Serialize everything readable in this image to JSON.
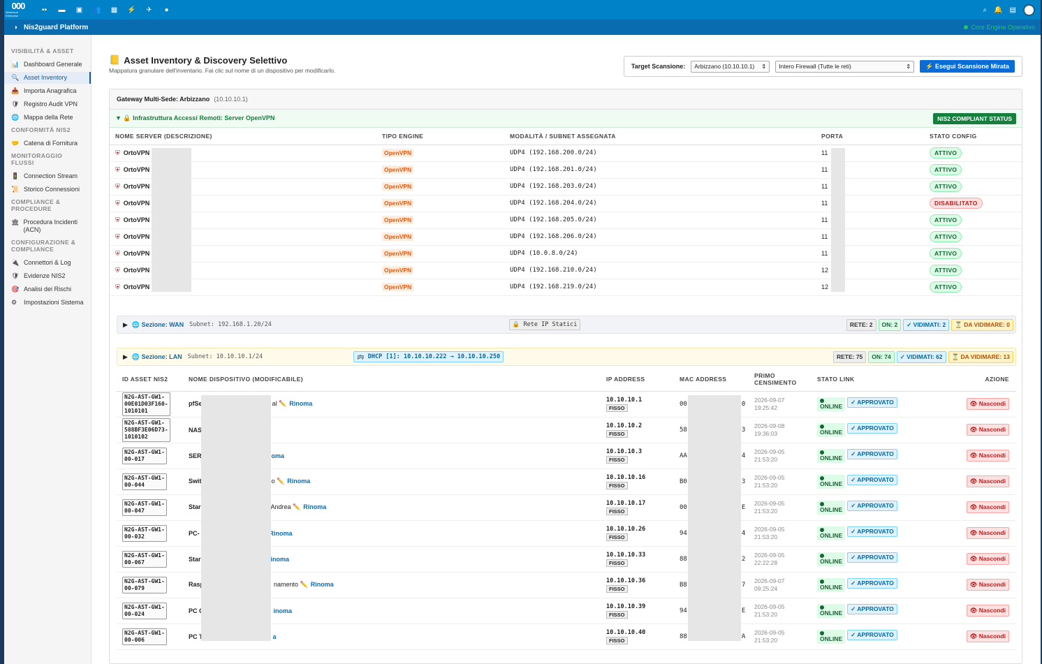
{
  "topbar": {
    "brand": "000",
    "brand_sub": "Nextcloud Enterprise",
    "apps": [
      "dashboard-icon",
      "files-icon",
      "photos-icon",
      "contacts-icon",
      "calendar-icon",
      "activity-icon",
      "talk-icon",
      "nis2-icon"
    ]
  },
  "appbar": {
    "title": "Nis2guard Platform",
    "engine": "Core Engine Operativo"
  },
  "sidebar": [
    {
      "type": "sec",
      "label": "VISIBILITÀ & ASSET"
    },
    {
      "type": "item",
      "label": "Dashboard Generale",
      "icon": "📊"
    },
    {
      "type": "item",
      "label": "Asset Inventory",
      "icon": "🔍",
      "active": true
    },
    {
      "type": "item",
      "label": "Importa Anagrafica",
      "icon": "📥"
    },
    {
      "type": "item",
      "label": "Registro Audit VPN",
      "icon": "🛡"
    },
    {
      "type": "item",
      "label": "Mappa della Rete",
      "icon": "🌐"
    },
    {
      "type": "sec",
      "label": "CONFORMITÀ NIS2"
    },
    {
      "type": "item",
      "label": "Catena di Fornitura",
      "icon": "🤝"
    },
    {
      "type": "sec",
      "label": "MONITORAGGIO FLUSSI"
    },
    {
      "type": "item",
      "label": "Connection Stream",
      "icon": "🚦"
    },
    {
      "type": "item",
      "label": "Storico Connessioni",
      "icon": "📜"
    },
    {
      "type": "sec",
      "label": "COMPLIANCE & PROCEDURE"
    },
    {
      "type": "item",
      "label": "Procedura Incidenti (ACN)",
      "icon": "🏛"
    },
    {
      "type": "sec",
      "label": "CONFIGURAZIONE & COMPLIANCE"
    },
    {
      "type": "item",
      "label": "Connettori & Log",
      "icon": "🔌"
    },
    {
      "type": "item",
      "label": "Evidenze NIS2",
      "icon": "🛡"
    },
    {
      "type": "item",
      "label": "Analisi dei Rischi",
      "icon": "🎯"
    },
    {
      "type": "item",
      "label": "Impostazioni Sistema",
      "icon": "⚙"
    }
  ],
  "page": {
    "title": "Asset Inventory & Discovery Selettivo",
    "subtitle": "Mappatura granulare dell'inventario. Fai clic sul nome di un dispositivo per modificarlo.",
    "target_label": "Target Scansione:",
    "target_value": "Arbizzano (10.10.10.1)",
    "scope_value": "Intero Firewall (Tutte le reti)",
    "scan_button": "⚡ Esegui Scansione Mirata"
  },
  "gateway": {
    "label": "Gateway Multi-Sede: Arbizzano",
    "ip": "(10.10.10.1)"
  },
  "vpn": {
    "title": "▼ 🔒 Infrastruttura Accessi Remoti: Server OpenVPN",
    "badge": "NIS2 COMPLIANT STATUS",
    "headers": [
      "NOME SERVER (DESCRIZIONE)",
      "TIPO ENGINE",
      "MODALITÀ / SUBNET ASSEGNATA",
      "PORTA",
      "STATO CONFIG"
    ],
    "rows": [
      {
        "name": "OrtoVPN",
        "engine": "OpenVPN",
        "subnet": "UDP4 (192.168.200.0/24)",
        "port": "11",
        "status": "ATTIVO"
      },
      {
        "name": "OrtoVPN",
        "engine": "OpenVPN",
        "subnet": "UDP4 (192.168.201.0/24)",
        "port": "11",
        "status": "ATTIVO"
      },
      {
        "name": "OrtoVPN",
        "engine": "OpenVPN",
        "subnet": "UDP4 (192.168.203.0/24)",
        "port": "11",
        "status": "ATTIVO"
      },
      {
        "name": "OrtoVPN",
        "engine": "OpenVPN",
        "subnet": "UDP4 (192.168.204.0/24)",
        "port": "11",
        "status": "DISABILITATO"
      },
      {
        "name": "OrtoVPN",
        "engine": "OpenVPN",
        "subnet": "UDP4 (192.168.205.0/24)",
        "port": "11",
        "status": "ATTIVO"
      },
      {
        "name": "OrtoVPN",
        "engine": "OpenVPN",
        "subnet": "UDP4 (192.168.206.0/24)",
        "port": "11",
        "status": "ATTIVO"
      },
      {
        "name": "OrtoVPN",
        "engine": "OpenVPN",
        "subnet": "UDP4 (10.0.8.0/24)",
        "port": "11",
        "status": "ATTIVO"
      },
      {
        "name": "OrtoVPN",
        "engine": "OpenVPN",
        "subnet": "UDP4 (192.168.210.0/24)",
        "port": "12",
        "status": "ATTIVO"
      },
      {
        "name": "OrtoVPN",
        "engine": "OpenVPN",
        "subnet": "UDP4 (192.168.219.0/24)",
        "port": "12",
        "status": "ATTIVO"
      }
    ]
  },
  "wan": {
    "arrow": "▶",
    "name": "🌐 Sezione: WAN",
    "subnet": "Subnet: 192.168.1.20/24",
    "static": "🔒 Rete IP Statici",
    "rete": "RETE: 2",
    "on": "ON: 2",
    "vid": "✓ VIDIMATI: 2",
    "david": "⏳ DA VIDIMARE: 0"
  },
  "lan": {
    "arrow": "▶",
    "name": "🌐 Sezione: LAN",
    "subnet": "Subnet: 10.10.10.1/24",
    "dhcp": "🚌 DHCP [1]: 10.10.10.222 → 10.10.10.250",
    "rete": "RETE: 75",
    "on": "ON: 74",
    "vid": "✓ VIDIMATI: 62",
    "david": "⏳ DA VIDIMARE: 13",
    "headers": [
      "ID ASSET NIS2",
      "NOME DISPOSITIVO (MODIFICABILE)",
      "IP ADDRESS",
      "MAC ADDRESS",
      "PRIMO CENSIMENTO",
      "STATO LINK",
      "AZIONE"
    ],
    "rows": [
      {
        "id1": "N2G-AST-GW1-",
        "id2": "00E01D03F160-",
        "id3": "1010101",
        "name": "pfSe",
        "suffix": "al ✏️",
        "rin": "Rinoma",
        "ip": "10.10.10.1",
        "mac": "00",
        "macend": "0",
        "d1": "2026-09-07",
        "d2": "19:25:42"
      },
      {
        "id1": "N2G-AST-GW1-",
        "id2": "588BF3E06D73-",
        "id3": "1010102",
        "name": "NAS",
        "suffix": "",
        "rin": "",
        "ip": "10.10.10.2",
        "mac": "58",
        "macend": "3",
        "d1": "2026-09-08",
        "d2": "19:36:03"
      },
      {
        "id1": "N2G-AST-GW1-",
        "id2": "00-017",
        "id3": "",
        "name": "SER",
        "suffix": "",
        "rin": "oma",
        "ip": "10.10.10.3",
        "mac": "AA",
        "macend": "4",
        "d1": "2026-09-05",
        "d2": "21:53:20"
      },
      {
        "id1": "N2G-AST-GW1-",
        "id2": "00-044",
        "id3": "",
        "name": "Swit",
        "suffix": "o ✏️",
        "rin": "Rinoma",
        "ip": "10.10.10.16",
        "mac": "B0",
        "macend": "3",
        "d1": "2026-09-05",
        "d2": "21:53:20"
      },
      {
        "id1": "N2G-AST-GW1-",
        "id2": "00-047",
        "id3": "",
        "name": "Star",
        "suffix": "Andrea ✏️",
        "rin": "Rinoma",
        "ip": "10.10.10.17",
        "mac": "00",
        "macend": "E",
        "d1": "2026-09-05",
        "d2": "21:53:20"
      },
      {
        "id1": "N2G-AST-GW1-",
        "id2": "00-032",
        "id3": "",
        "name": "PC-",
        "suffix": "",
        "rin": "Rinoma",
        "ip": "10.10.10.26",
        "mac": "94",
        "macend": "4",
        "d1": "2026-09-05",
        "d2": "21:53:20"
      },
      {
        "id1": "N2G-AST-GW1-",
        "id2": "00-067",
        "id3": "",
        "name": "Star",
        "suffix": "",
        "rin": "inoma",
        "ip": "10.10.10.33",
        "mac": "88",
        "macend": "2",
        "d1": "2026-09-05",
        "d2": "22:22:28"
      },
      {
        "id1": "N2G-AST-GW1-",
        "id2": "00-079",
        "id3": "",
        "name": "Rasp",
        "suffix": "namento ✏️",
        "rin": "Rinoma",
        "ip": "10.10.10.36",
        "mac": "B8",
        "macend": "7",
        "d1": "2026-09-07",
        "d2": "09:25:24"
      },
      {
        "id1": "N2G-AST-GW1-",
        "id2": "00-024",
        "id3": "",
        "name": "PC C",
        "suffix": "",
        "rin": "inoma",
        "ip": "10.10.10.39",
        "mac": "94",
        "macend": "E",
        "d1": "2026-09-05",
        "d2": "21:53:20"
      },
      {
        "id1": "N2G-AST-GW1-",
        "id2": "00-006",
        "id3": "",
        "name": "PC T",
        "suffix": "",
        "rin": "a",
        "ip": "10.10.10.40",
        "mac": "88",
        "macend": "A",
        "d1": "2026-09-05",
        "d2": "21:53:20"
      }
    ],
    "fisso": "FISSO",
    "online": "ONLINE",
    "approved": "✓ APPROVATO",
    "hide": "👁 Nascondi"
  }
}
